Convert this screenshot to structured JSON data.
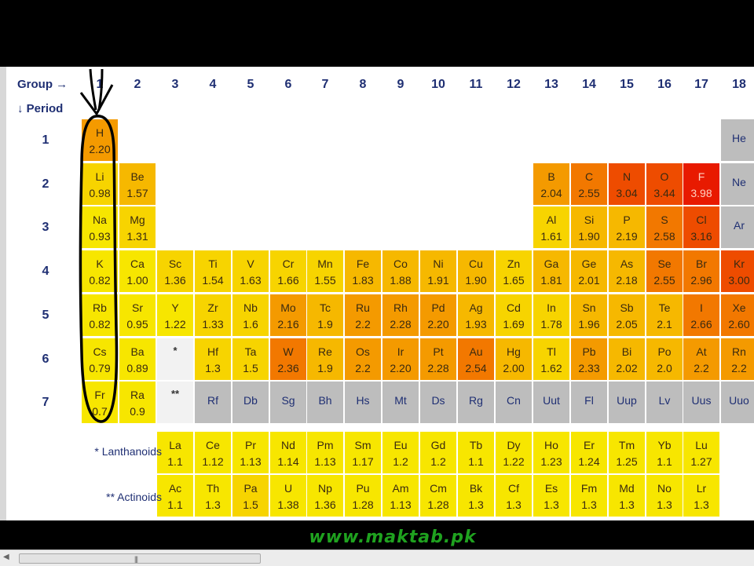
{
  "header": {
    "group_caption": "Group →",
    "period_caption": "↓ Period"
  },
  "groups": [
    "1",
    "2",
    "3",
    "4",
    "5",
    "6",
    "7",
    "8",
    "9",
    "10",
    "11",
    "12",
    "13",
    "14",
    "15",
    "16",
    "17",
    "18"
  ],
  "periods": [
    "1",
    "2",
    "3",
    "4",
    "5",
    "6",
    "7"
  ],
  "elements": [
    {
      "s": "H",
      "en": "2.20",
      "g": 1,
      "r": 1,
      "c": "c4"
    },
    {
      "s": "He",
      "en": "",
      "g": 18,
      "r": 1,
      "c": "cg"
    },
    {
      "s": "Li",
      "en": "0.98",
      "g": 1,
      "r": 2,
      "c": "c2"
    },
    {
      "s": "Be",
      "en": "1.57",
      "g": 2,
      "r": 2,
      "c": "c3"
    },
    {
      "s": "B",
      "en": "2.04",
      "g": 13,
      "r": 2,
      "c": "c4"
    },
    {
      "s": "C",
      "en": "2.55",
      "g": 14,
      "r": 2,
      "c": "c5"
    },
    {
      "s": "N",
      "en": "3.04",
      "g": 15,
      "r": 2,
      "c": "c6"
    },
    {
      "s": "O",
      "en": "3.44",
      "g": 16,
      "r": 2,
      "c": "c6"
    },
    {
      "s": "F",
      "en": "3.98",
      "g": 17,
      "r": 2,
      "c": "c7"
    },
    {
      "s": "Ne",
      "en": "",
      "g": 18,
      "r": 2,
      "c": "cg"
    },
    {
      "s": "Na",
      "en": "0.93",
      "g": 1,
      "r": 3,
      "c": "c1"
    },
    {
      "s": "Mg",
      "en": "1.31",
      "g": 2,
      "r": 3,
      "c": "c2"
    },
    {
      "s": "Al",
      "en": "1.61",
      "g": 13,
      "r": 3,
      "c": "c2"
    },
    {
      "s": "Si",
      "en": "1.90",
      "g": 14,
      "r": 3,
      "c": "c3"
    },
    {
      "s": "P",
      "en": "2.19",
      "g": 15,
      "r": 3,
      "c": "c3"
    },
    {
      "s": "S",
      "en": "2.58",
      "g": 16,
      "r": 3,
      "c": "c5"
    },
    {
      "s": "Cl",
      "en": "3.16",
      "g": 17,
      "r": 3,
      "c": "c6"
    },
    {
      "s": "Ar",
      "en": "",
      "g": 18,
      "r": 3,
      "c": "cg"
    },
    {
      "s": "K",
      "en": "0.82",
      "g": 1,
      "r": 4,
      "c": "c1"
    },
    {
      "s": "Ca",
      "en": "1.00",
      "g": 2,
      "r": 4,
      "c": "c1"
    },
    {
      "s": "Sc",
      "en": "1.36",
      "g": 3,
      "r": 4,
      "c": "c2"
    },
    {
      "s": "Ti",
      "en": "1.54",
      "g": 4,
      "r": 4,
      "c": "c2"
    },
    {
      "s": "V",
      "en": "1.63",
      "g": 5,
      "r": 4,
      "c": "c2"
    },
    {
      "s": "Cr",
      "en": "1.66",
      "g": 6,
      "r": 4,
      "c": "c2"
    },
    {
      "s": "Mn",
      "en": "1.55",
      "g": 7,
      "r": 4,
      "c": "c2"
    },
    {
      "s": "Fe",
      "en": "1.83",
      "g": 8,
      "r": 4,
      "c": "c3"
    },
    {
      "s": "Co",
      "en": "1.88",
      "g": 9,
      "r": 4,
      "c": "c3"
    },
    {
      "s": "Ni",
      "en": "1.91",
      "g": 10,
      "r": 4,
      "c": "c3"
    },
    {
      "s": "Cu",
      "en": "1.90",
      "g": 11,
      "r": 4,
      "c": "c3"
    },
    {
      "s": "Zn",
      "en": "1.65",
      "g": 12,
      "r": 4,
      "c": "c2"
    },
    {
      "s": "Ga",
      "en": "1.81",
      "g": 13,
      "r": 4,
      "c": "c3"
    },
    {
      "s": "Ge",
      "en": "2.01",
      "g": 14,
      "r": 4,
      "c": "c3"
    },
    {
      "s": "As",
      "en": "2.18",
      "g": 15,
      "r": 4,
      "c": "c3"
    },
    {
      "s": "Se",
      "en": "2.55",
      "g": 16,
      "r": 4,
      "c": "c5"
    },
    {
      "s": "Br",
      "en": "2.96",
      "g": 17,
      "r": 4,
      "c": "c5"
    },
    {
      "s": "Kr",
      "en": "3.00",
      "g": 18,
      "r": 4,
      "c": "c6"
    },
    {
      "s": "Rb",
      "en": "0.82",
      "g": 1,
      "r": 5,
      "c": "c1"
    },
    {
      "s": "Sr",
      "en": "0.95",
      "g": 2,
      "r": 5,
      "c": "c1"
    },
    {
      "s": "Y",
      "en": "1.22",
      "g": 3,
      "r": 5,
      "c": "c1"
    },
    {
      "s": "Zr",
      "en": "1.33",
      "g": 4,
      "r": 5,
      "c": "c2"
    },
    {
      "s": "Nb",
      "en": "1.6",
      "g": 5,
      "r": 5,
      "c": "c2"
    },
    {
      "s": "Mo",
      "en": "2.16",
      "g": 6,
      "r": 5,
      "c": "c4"
    },
    {
      "s": "Tc",
      "en": "1.9",
      "g": 7,
      "r": 5,
      "c": "c3"
    },
    {
      "s": "Ru",
      "en": "2.2",
      "g": 8,
      "r": 5,
      "c": "c4"
    },
    {
      "s": "Rh",
      "en": "2.28",
      "g": 9,
      "r": 5,
      "c": "c4"
    },
    {
      "s": "Pd",
      "en": "2.20",
      "g": 10,
      "r": 5,
      "c": "c4"
    },
    {
      "s": "Ag",
      "en": "1.93",
      "g": 11,
      "r": 5,
      "c": "c3"
    },
    {
      "s": "Cd",
      "en": "1.69",
      "g": 12,
      "r": 5,
      "c": "c2"
    },
    {
      "s": "In",
      "en": "1.78",
      "g": 13,
      "r": 5,
      "c": "c2"
    },
    {
      "s": "Sn",
      "en": "1.96",
      "g": 14,
      "r": 5,
      "c": "c3"
    },
    {
      "s": "Sb",
      "en": "2.05",
      "g": 15,
      "r": 5,
      "c": "c3"
    },
    {
      "s": "Te",
      "en": "2.1",
      "g": 16,
      "r": 5,
      "c": "c3"
    },
    {
      "s": "I",
      "en": "2.66",
      "g": 17,
      "r": 5,
      "c": "c5"
    },
    {
      "s": "Xe",
      "en": "2.60",
      "g": 18,
      "r": 5,
      "c": "c5"
    },
    {
      "s": "Cs",
      "en": "0.79",
      "g": 1,
      "r": 6,
      "c": "c1"
    },
    {
      "s": "Ba",
      "en": "0.89",
      "g": 2,
      "r": 6,
      "c": "c1"
    },
    {
      "s": "Hf",
      "en": "1.3",
      "g": 4,
      "r": 6,
      "c": "c2"
    },
    {
      "s": "Ta",
      "en": "1.5",
      "g": 5,
      "r": 6,
      "c": "c2"
    },
    {
      "s": "W",
      "en": "2.36",
      "g": 6,
      "r": 6,
      "c": "c5"
    },
    {
      "s": "Re",
      "en": "1.9",
      "g": 7,
      "r": 6,
      "c": "c3"
    },
    {
      "s": "Os",
      "en": "2.2",
      "g": 8,
      "r": 6,
      "c": "c4"
    },
    {
      "s": "Ir",
      "en": "2.20",
      "g": 9,
      "r": 6,
      "c": "c4"
    },
    {
      "s": "Pt",
      "en": "2.28",
      "g": 10,
      "r": 6,
      "c": "c4"
    },
    {
      "s": "Au",
      "en": "2.54",
      "g": 11,
      "r": 6,
      "c": "c5"
    },
    {
      "s": "Hg",
      "en": "2.00",
      "g": 12,
      "r": 6,
      "c": "c3"
    },
    {
      "s": "Tl",
      "en": "1.62",
      "g": 13,
      "r": 6,
      "c": "c2"
    },
    {
      "s": "Pb",
      "en": "2.33",
      "g": 14,
      "r": 6,
      "c": "c4"
    },
    {
      "s": "Bi",
      "en": "2.02",
      "g": 15,
      "r": 6,
      "c": "c3"
    },
    {
      "s": "Po",
      "en": "2.0",
      "g": 16,
      "r": 6,
      "c": "c3"
    },
    {
      "s": "At",
      "en": "2.2",
      "g": 17,
      "r": 6,
      "c": "c4"
    },
    {
      "s": "Rn",
      "en": "2.2",
      "g": 18,
      "r": 6,
      "c": "c4"
    },
    {
      "s": "Fr",
      "en": "0.7",
      "g": 1,
      "r": 7,
      "c": "c1"
    },
    {
      "s": "Ra",
      "en": "0.9",
      "g": 2,
      "r": 7,
      "c": "c1"
    },
    {
      "s": "Rf",
      "en": "",
      "g": 4,
      "r": 7,
      "c": "cg"
    },
    {
      "s": "Db",
      "en": "",
      "g": 5,
      "r": 7,
      "c": "cg"
    },
    {
      "s": "Sg",
      "en": "",
      "g": 6,
      "r": 7,
      "c": "cg"
    },
    {
      "s": "Bh",
      "en": "",
      "g": 7,
      "r": 7,
      "c": "cg"
    },
    {
      "s": "Hs",
      "en": "",
      "g": 8,
      "r": 7,
      "c": "cg"
    },
    {
      "s": "Mt",
      "en": "",
      "g": 9,
      "r": 7,
      "c": "cg"
    },
    {
      "s": "Ds",
      "en": "",
      "g": 10,
      "r": 7,
      "c": "cg"
    },
    {
      "s": "Rg",
      "en": "",
      "g": 11,
      "r": 7,
      "c": "cg"
    },
    {
      "s": "Cn",
      "en": "",
      "g": 12,
      "r": 7,
      "c": "cg"
    },
    {
      "s": "Uut",
      "en": "",
      "g": 13,
      "r": 7,
      "c": "cg"
    },
    {
      "s": "Fl",
      "en": "",
      "g": 14,
      "r": 7,
      "c": "cg"
    },
    {
      "s": "Uup",
      "en": "",
      "g": 15,
      "r": 7,
      "c": "cg"
    },
    {
      "s": "Lv",
      "en": "",
      "g": 16,
      "r": 7,
      "c": "cg"
    },
    {
      "s": "Uus",
      "en": "",
      "g": 17,
      "r": 7,
      "c": "cg"
    },
    {
      "s": "Uuo",
      "en": "",
      "g": 18,
      "r": 7,
      "c": "cg"
    }
  ],
  "placeholders": [
    {
      "label": "*",
      "g": 3,
      "r": 6
    },
    {
      "label": "**",
      "g": 3,
      "r": 7
    }
  ],
  "lanthanoids": {
    "label": "* Lanthanoids",
    "items": [
      {
        "s": "La",
        "en": "1.1",
        "c": "c1"
      },
      {
        "s": "Ce",
        "en": "1.12",
        "c": "c1"
      },
      {
        "s": "Pr",
        "en": "1.13",
        "c": "c1"
      },
      {
        "s": "Nd",
        "en": "1.14",
        "c": "c1"
      },
      {
        "s": "Pm",
        "en": "1.13",
        "c": "c1"
      },
      {
        "s": "Sm",
        "en": "1.17",
        "c": "c1"
      },
      {
        "s": "Eu",
        "en": "1.2",
        "c": "c1"
      },
      {
        "s": "Gd",
        "en": "1.2",
        "c": "c1"
      },
      {
        "s": "Tb",
        "en": "1.1",
        "c": "c1"
      },
      {
        "s": "Dy",
        "en": "1.22",
        "c": "c1"
      },
      {
        "s": "Ho",
        "en": "1.23",
        "c": "c1"
      },
      {
        "s": "Er",
        "en": "1.24",
        "c": "c1"
      },
      {
        "s": "Tm",
        "en": "1.25",
        "c": "c1"
      },
      {
        "s": "Yb",
        "en": "1.1",
        "c": "c1"
      },
      {
        "s": "Lu",
        "en": "1.27",
        "c": "c1"
      }
    ]
  },
  "actinoids": {
    "label": "** Actinoids",
    "items": [
      {
        "s": "Ac",
        "en": "1.1",
        "c": "c1"
      },
      {
        "s": "Th",
        "en": "1.3",
        "c": "c1"
      },
      {
        "s": "Pa",
        "en": "1.5",
        "c": "c2"
      },
      {
        "s": "U",
        "en": "1.38",
        "c": "c1"
      },
      {
        "s": "Np",
        "en": "1.36",
        "c": "c1"
      },
      {
        "s": "Pu",
        "en": "1.28",
        "c": "c1"
      },
      {
        "s": "Am",
        "en": "1.13",
        "c": "c1"
      },
      {
        "s": "Cm",
        "en": "1.28",
        "c": "c1"
      },
      {
        "s": "Bk",
        "en": "1.3",
        "c": "c1"
      },
      {
        "s": "Cf",
        "en": "1.3",
        "c": "c1"
      },
      {
        "s": "Es",
        "en": "1.3",
        "c": "c1"
      },
      {
        "s": "Fm",
        "en": "1.3",
        "c": "c1"
      },
      {
        "s": "Md",
        "en": "1.3",
        "c": "c1"
      },
      {
        "s": "No",
        "en": "1.3",
        "c": "c1"
      },
      {
        "s": "Lr",
        "en": "1.3",
        "c": "c1"
      }
    ]
  },
  "watermark": "www.maktab.pk",
  "scrollbar": {
    "grip": "|||"
  },
  "colors": {
    "header_text": "#1f2f73",
    "annotation": "#000000",
    "watermark": "#1fa21f"
  },
  "icons": {
    "scroll_left": "scroll-left-arrow-icon"
  }
}
